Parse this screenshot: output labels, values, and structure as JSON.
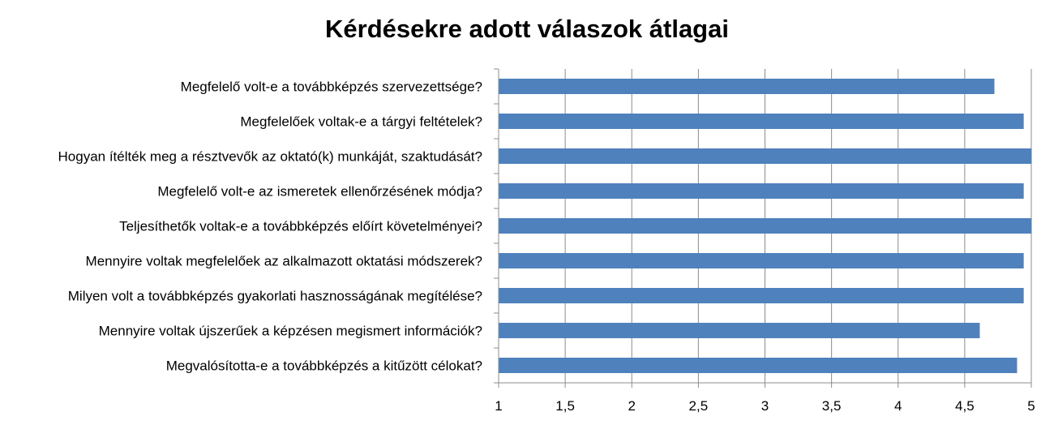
{
  "chart_data": {
    "type": "bar",
    "orientation": "horizontal",
    "title": "Kérdésekre adott válaszok átlagai",
    "categories": [
      "Megfelelő volt-e a továbbképzés szervezettsége?",
      "Megfelelőek voltak-e a tárgyi feltételek?",
      "Hogyan ítélték meg a résztvevők az oktató(k) munkáját, szaktudását?",
      "Megfelelő volt-e az ismeretek ellenőrzésének módja?",
      "Teljesíthetők voltak-e a továbbképzés előírt követelményei?",
      "Mennyire voltak megfelelőek az alkalmazott oktatási módszerek?",
      "Milyen volt a továbbképzés gyakorlati hasznosságának megítélése?",
      "Mennyire voltak újszerűek a képzésen megismert információk?",
      "Megvalósította-e a továbbképzés a kitűzött célokat?"
    ],
    "values": [
      4.72,
      4.94,
      5.0,
      4.94,
      5.0,
      4.94,
      4.94,
      4.61,
      4.89
    ],
    "xlim": [
      1,
      5
    ],
    "ticks": [
      1,
      1.5,
      2,
      2.5,
      3,
      3.5,
      4,
      4.5,
      5
    ],
    "tick_labels": [
      "1",
      "1,5",
      "2",
      "2,5",
      "3",
      "3,5",
      "4",
      "4,5",
      "5"
    ],
    "grid": true,
    "bar_color": "#4F81BD",
    "grid_color": "#8C8C8C"
  }
}
